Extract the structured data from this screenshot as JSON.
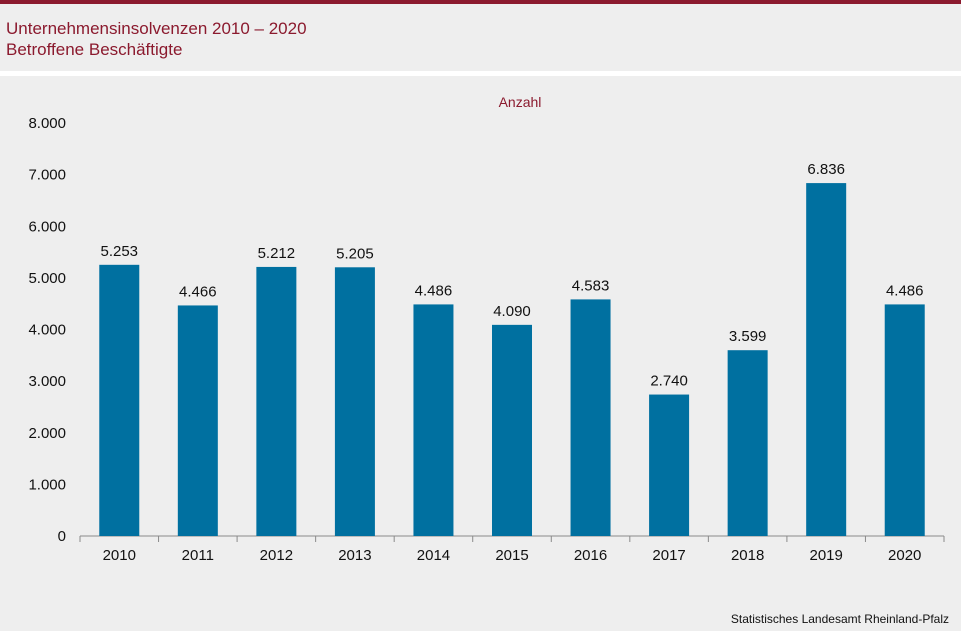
{
  "header": {
    "title": "Unternehmensinsolvenzen 2010 – 2020",
    "subtitle": "Betroffene Beschäftigte"
  },
  "source": "Statistisches Landesamt Rheinland-Pfalz",
  "colors": {
    "bar": "#0070a0",
    "accent": "#8b1a2e",
    "background": "#eeeeee"
  },
  "chart_data": {
    "type": "bar",
    "title": "Unternehmensinsolvenzen 2010 – 2020",
    "subtitle": "Betroffene Beschäftigte",
    "unit_label": "Anzahl",
    "categories": [
      "2010",
      "2011",
      "2012",
      "2013",
      "2014",
      "2015",
      "2016",
      "2017",
      "2018",
      "2019",
      "2020"
    ],
    "values": [
      5253,
      4466,
      5212,
      5205,
      4486,
      4090,
      4583,
      2740,
      3599,
      6836,
      4486
    ],
    "value_labels": [
      "5.253",
      "4.466",
      "5.212",
      "5.205",
      "4.486",
      "4.090",
      "4.583",
      "2.740",
      "3.599",
      "6.836",
      "4.486"
    ],
    "y_ticks": [
      0,
      1000,
      2000,
      3000,
      4000,
      5000,
      6000,
      7000,
      8000
    ],
    "y_tick_labels": [
      "0",
      "1.000",
      "2.000",
      "3.000",
      "4.000",
      "5.000",
      "6.000",
      "7.000",
      "8.000"
    ],
    "ylim": [
      0,
      8000
    ],
    "grid": false,
    "legend": "none"
  }
}
